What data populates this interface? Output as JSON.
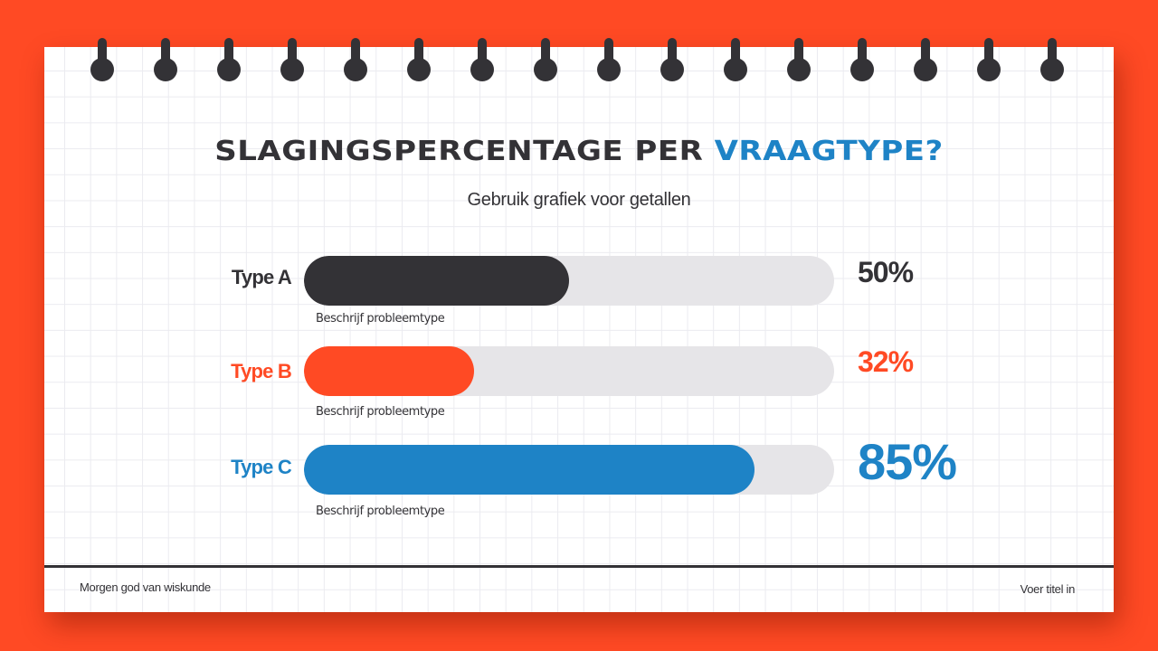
{
  "slide": {
    "title_main": "Slagingspercentage per ",
    "title_accent": "vraagtype?",
    "subtitle": "Gebruik grafiek voor getallen",
    "footer_left": "Morgen god van wiskunde",
    "footer_right": "Voer titel in"
  },
  "colors": {
    "background": "#FF4A24",
    "dark": "#333236",
    "orange": "#FF4A24",
    "blue": "#1E83C6",
    "track": "#E6E5E8"
  },
  "rows": [
    {
      "label": "Type A",
      "value_text": "50%",
      "description": "Beschrijf probleemtype",
      "color": "#333236"
    },
    {
      "label": "Type B",
      "value_text": "32%",
      "description": "Beschrijf probleemtype",
      "color": "#FF4A24"
    },
    {
      "label": "Type C",
      "value_text": "85%",
      "description": "Beschrijf probleemtype",
      "color": "#1E83C6"
    }
  ],
  "chart_data": {
    "type": "bar",
    "orientation": "horizontal",
    "title": "Slagingspercentage per vraagtype?",
    "subtitle": "Gebruik grafiek voor getallen",
    "categories": [
      "Type A",
      "Type B",
      "Type C"
    ],
    "values": [
      50,
      32,
      85
    ],
    "value_labels": [
      "50%",
      "32%",
      "85%"
    ],
    "annotations": [
      "Beschrijf probleemtype",
      "Beschrijf probleemtype",
      "Beschrijf probleemtype"
    ],
    "xlim": [
      0,
      100
    ],
    "xlabel": "",
    "ylabel": "",
    "grid": false,
    "legend": "none"
  }
}
